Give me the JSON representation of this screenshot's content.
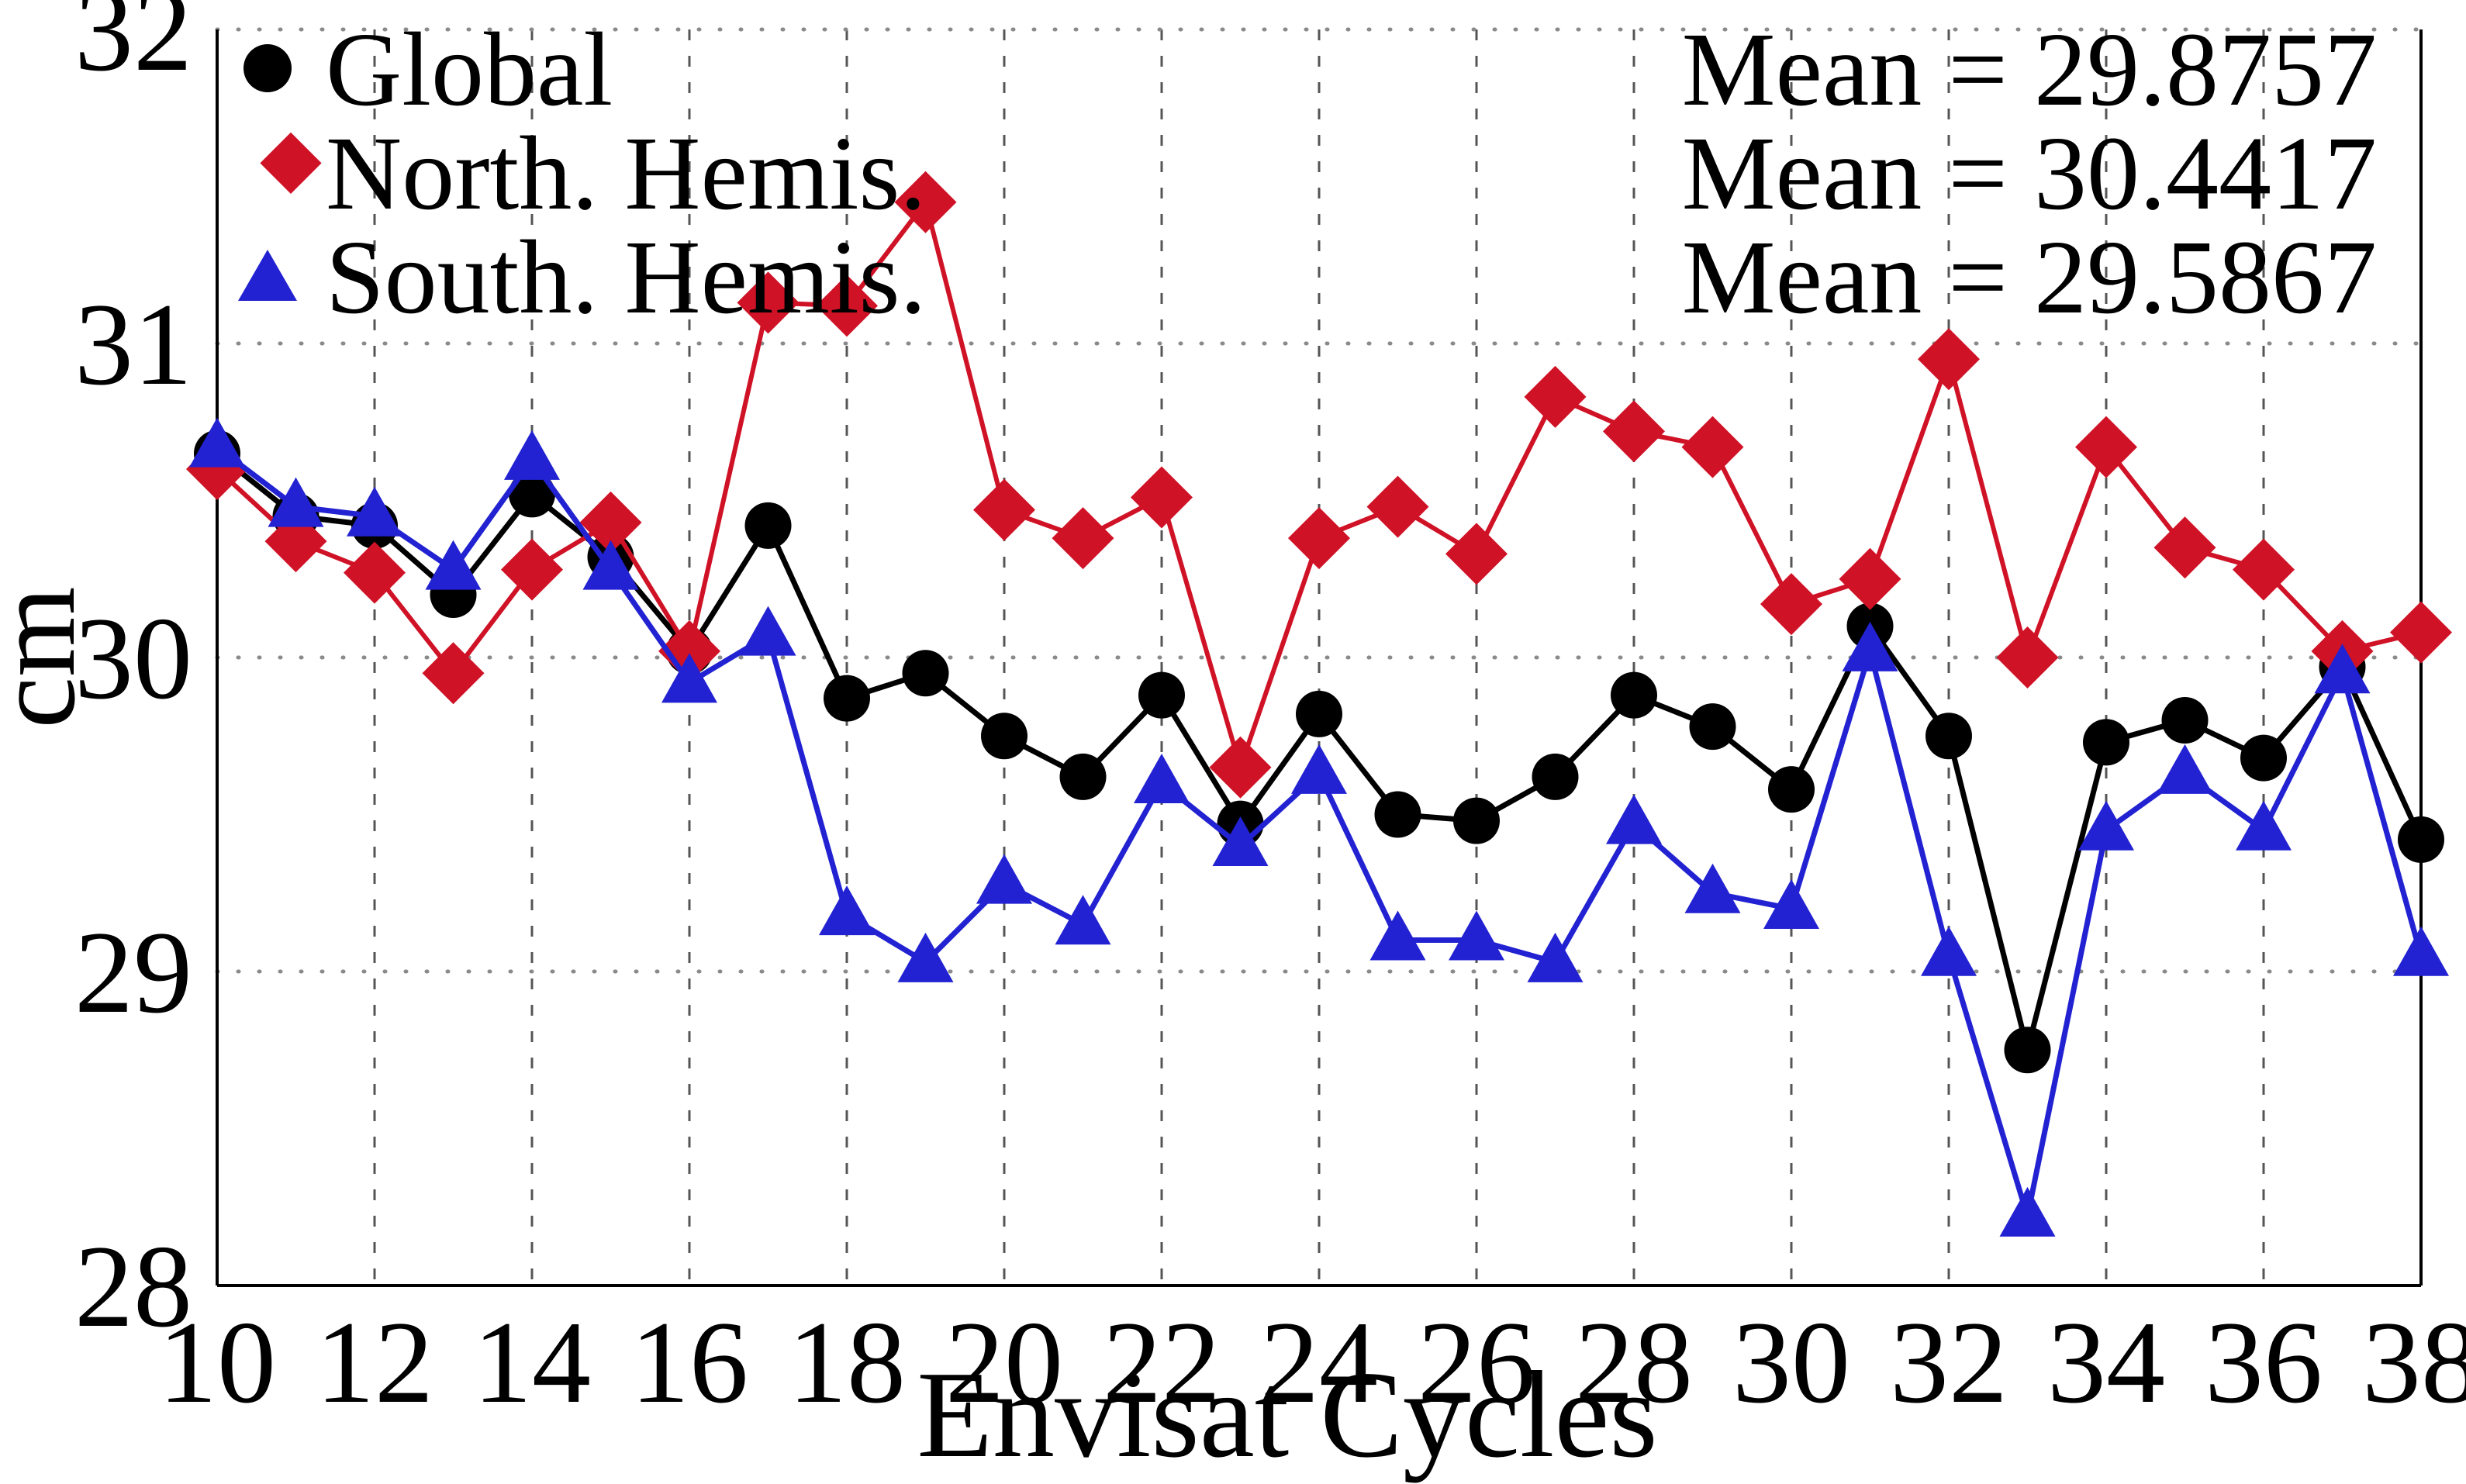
{
  "chart_data": {
    "type": "line",
    "title": "",
    "xlabel": "Envisat Cycles",
    "ylabel": "cm",
    "xlim": [
      10,
      38
    ],
    "ylim": [
      28,
      32
    ],
    "xticks": [
      10,
      12,
      14,
      16,
      18,
      20,
      22,
      24,
      26,
      28,
      30,
      32,
      34,
      36,
      38
    ],
    "yticks": [
      28,
      29,
      30,
      31,
      32
    ],
    "grid": "dotted horizontal at integer cm, dashed vertical every 2 cycles",
    "legend_position": "top-left inside plot",
    "x": [
      10,
      11,
      12,
      13,
      14,
      15,
      16,
      17,
      18,
      19,
      20,
      21,
      22,
      23,
      24,
      25,
      26,
      27,
      28,
      29,
      30,
      31,
      32,
      33,
      34,
      35,
      36,
      37,
      38
    ],
    "series": [
      {
        "name": "Global",
        "marker": "circle",
        "color": "#000000",
        "mean": 29.8757,
        "mean_label": "Mean = 29.8757",
        "values": [
          30.65,
          30.45,
          30.42,
          30.2,
          30.52,
          30.32,
          30.02,
          30.42,
          29.87,
          29.95,
          29.75,
          29.62,
          29.88,
          29.47,
          29.82,
          29.5,
          29.48,
          29.62,
          29.88,
          29.78,
          29.58,
          30.1,
          29.75,
          28.75,
          29.73,
          29.8,
          29.68,
          29.97,
          29.42
        ]
      },
      {
        "name": "North. Hemis.",
        "marker": "diamond",
        "color": "#d01226",
        "mean": 30.4417,
        "mean_label": "Mean = 30.4417",
        "values": [
          30.6,
          30.37,
          30.27,
          29.95,
          30.28,
          30.43,
          30.02,
          31.13,
          31.12,
          31.45,
          30.47,
          30.38,
          30.51,
          29.65,
          30.38,
          30.48,
          30.33,
          30.83,
          30.72,
          30.67,
          30.17,
          30.25,
          30.95,
          30.0,
          30.67,
          30.35,
          30.28,
          30.02,
          30.08
        ]
      },
      {
        "name": "South. Hemis.",
        "marker": "triangle",
        "color": "#2222d2",
        "mean": 29.5867,
        "mean_label": "Mean = 29.5867",
        "values": [
          30.67,
          30.48,
          30.45,
          30.28,
          30.63,
          30.28,
          29.92,
          30.07,
          29.18,
          29.03,
          29.28,
          29.15,
          29.6,
          29.4,
          29.63,
          29.1,
          29.1,
          29.03,
          29.47,
          29.25,
          29.2,
          30.02,
          29.05,
          28.22,
          29.45,
          29.63,
          29.45,
          29.95,
          29.05
        ]
      }
    ]
  }
}
